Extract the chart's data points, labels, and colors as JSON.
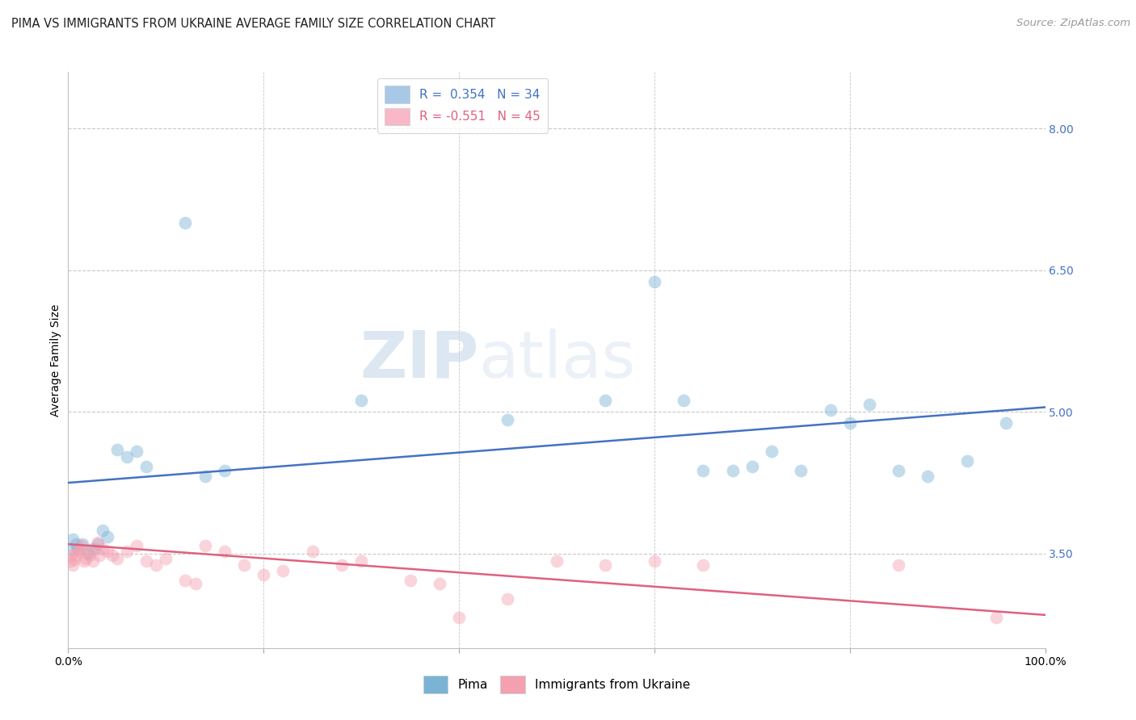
{
  "title": "PIMA VS IMMIGRANTS FROM UKRAINE AVERAGE FAMILY SIZE CORRELATION CHART",
  "source": "Source: ZipAtlas.com",
  "ylabel": "Average Family Size",
  "xlim": [
    0,
    100
  ],
  "ylim_bottom": 2.5,
  "ylim_top": 8.6,
  "yticks": [
    3.5,
    5.0,
    6.5,
    8.0
  ],
  "ytick_labels": [
    "3.50",
    "5.00",
    "6.50",
    "8.00"
  ],
  "xtick_positions": [
    0,
    20,
    40,
    60,
    80,
    100
  ],
  "xtick_labels_major": [
    "0.0%",
    "",
    "",
    "",
    "",
    "100.0%"
  ],
  "watermark_zip": "ZIP",
  "watermark_atlas": "atlas",
  "legend_entries": [
    {
      "label": "R =  0.354   N = 34",
      "color": "#a8c8e8"
    },
    {
      "label": "R = -0.551   N = 45",
      "color": "#f8b8c8"
    }
  ],
  "blue_scatter_x": [
    0.3,
    0.5,
    0.8,
    1.0,
    1.5,
    2.0,
    2.5,
    3.0,
    3.5,
    4.0,
    5.0,
    6.0,
    7.0,
    8.0,
    12.0,
    14.0,
    16.0,
    30.0,
    45.0,
    55.0,
    60.0,
    63.0,
    65.0,
    68.0,
    70.0,
    72.0,
    75.0,
    78.0,
    80.0,
    82.0,
    85.0,
    88.0,
    92.0,
    96.0
  ],
  "blue_scatter_y": [
    3.55,
    3.65,
    3.6,
    3.55,
    3.6,
    3.5,
    3.55,
    3.6,
    3.75,
    3.68,
    4.6,
    4.52,
    4.58,
    4.42,
    7.0,
    4.32,
    4.38,
    5.12,
    4.92,
    5.12,
    6.38,
    5.12,
    4.38,
    4.38,
    4.42,
    4.58,
    4.38,
    5.02,
    4.88,
    5.08,
    4.38,
    4.32,
    4.48,
    4.88
  ],
  "blue_line_x": [
    0,
    100
  ],
  "blue_line_y": [
    4.25,
    5.05
  ],
  "pink_scatter_x": [
    0.2,
    0.3,
    0.5,
    0.6,
    0.8,
    1.0,
    1.2,
    1.4,
    1.6,
    1.8,
    2.0,
    2.2,
    2.5,
    2.8,
    3.0,
    3.2,
    3.5,
    4.0,
    4.5,
    5.0,
    6.0,
    7.0,
    8.0,
    9.0,
    10.0,
    12.0,
    13.0,
    14.0,
    16.0,
    18.0,
    20.0,
    22.0,
    25.0,
    28.0,
    30.0,
    35.0,
    38.0,
    40.0,
    45.0,
    50.0,
    55.0,
    60.0,
    65.0,
    85.0,
    95.0
  ],
  "pink_scatter_y": [
    3.42,
    3.48,
    3.38,
    3.44,
    3.48,
    3.52,
    3.55,
    3.58,
    3.42,
    3.45,
    3.52,
    3.48,
    3.42,
    3.55,
    3.62,
    3.48,
    3.55,
    3.52,
    3.48,
    3.45,
    3.52,
    3.58,
    3.42,
    3.38,
    3.45,
    3.22,
    3.18,
    3.58,
    3.52,
    3.38,
    3.28,
    3.32,
    3.52,
    3.38,
    3.42,
    3.22,
    3.18,
    2.82,
    3.02,
    3.42,
    3.38,
    3.42,
    3.38,
    3.38,
    2.82
  ],
  "pink_line_x": [
    0,
    100
  ],
  "pink_line_y": [
    3.6,
    2.85
  ],
  "blue_color": "#7ab3d4",
  "pink_color": "#f4a0b0",
  "blue_line_color": "#4472c4",
  "pink_line_color": "#e06080",
  "grid_color": "#c8c8c8",
  "background_color": "#ffffff",
  "title_fontsize": 10.5,
  "source_fontsize": 9.5,
  "axis_label_fontsize": 10,
  "tick_label_fontsize": 10,
  "legend_fontsize": 11,
  "marker_size": 130,
  "marker_alpha": 0.45,
  "line_width": 1.8
}
